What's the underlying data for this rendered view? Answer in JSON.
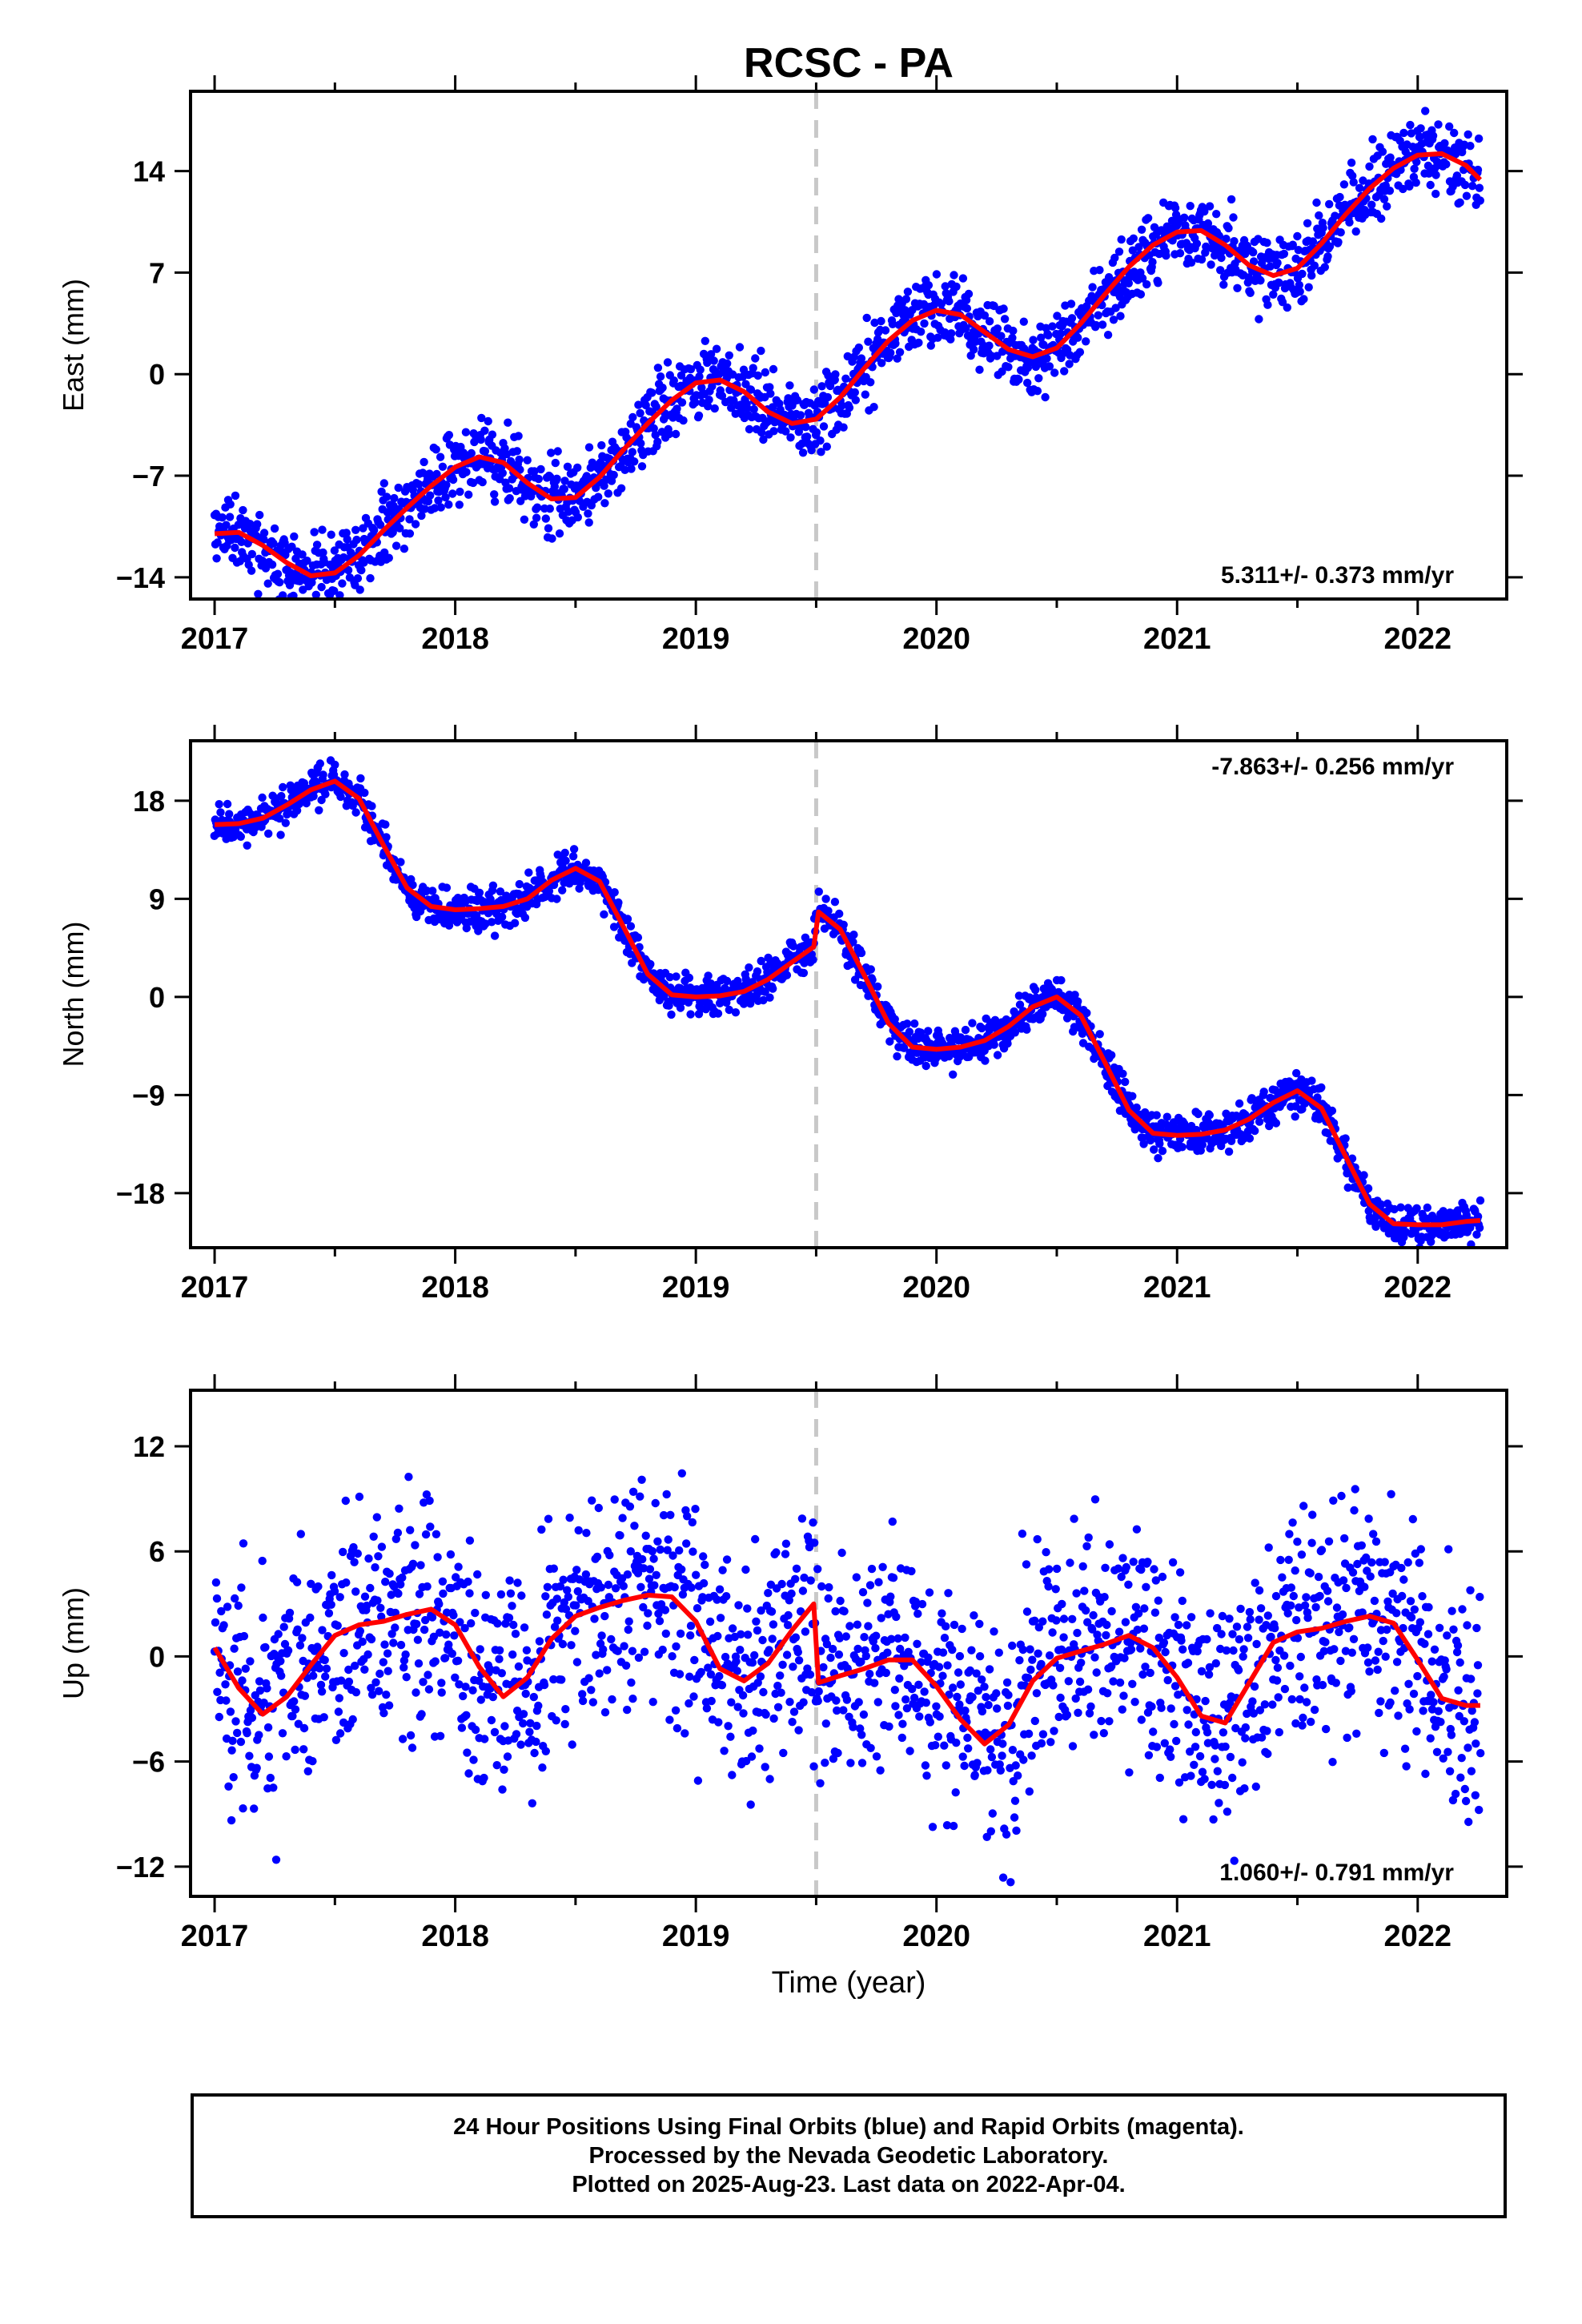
{
  "title": "RCSC - PA",
  "xlabel": "Time (year)",
  "colors": {
    "final_orbits": "#0000ff",
    "model": "#ff0000",
    "event_line": "#c8c8c8",
    "frame": "#000000"
  },
  "footer": {
    "line1": "24 Hour Positions Using Final Orbits (blue) and Rapid Orbits (magenta).",
    "line2": "Processed by the Nevada Geodetic Laboratory.",
    "line3": "Plotted on 2025-Aug-23. Last data on 2022-Apr-04."
  },
  "chart_data": [
    {
      "type": "scatter",
      "name": "east",
      "ylabel": "East (mm)",
      "rate_label": "5.311+/- 0.373 mm/yr",
      "rate_position": "bottom-right",
      "xlim": [
        2016.9,
        2022.37
      ],
      "ylim": [
        -15.5,
        19.5
      ],
      "yticks": [
        -14,
        -7,
        0,
        7,
        14
      ],
      "xticks": [
        2017,
        2018,
        2019,
        2020,
        2021,
        2022
      ],
      "event_line_x": 2019.5,
      "model_x": [
        2017.0,
        2017.1,
        2017.2,
        2017.3,
        2017.4,
        2017.5,
        2017.6,
        2017.7,
        2017.8,
        2017.9,
        2018.0,
        2018.1,
        2018.2,
        2018.3,
        2018.4,
        2018.5,
        2018.6,
        2018.7,
        2018.8,
        2018.9,
        2019.0,
        2019.1,
        2019.2,
        2019.3,
        2019.4,
        2019.5,
        2019.6,
        2019.7,
        2019.8,
        2019.9,
        2020.0,
        2020.1,
        2020.2,
        2020.3,
        2020.4,
        2020.5,
        2020.6,
        2020.7,
        2020.8,
        2020.9,
        2021.0,
        2021.1,
        2021.2,
        2021.3,
        2021.4,
        2021.5,
        2021.6,
        2021.7,
        2021.8,
        2021.9,
        2022.0,
        2022.1,
        2022.2,
        2022.26
      ],
      "model_y": [
        -11.0,
        -10.9,
        -11.8,
        -13.0,
        -13.9,
        -13.7,
        -12.5,
        -10.8,
        -9.2,
        -7.7,
        -6.4,
        -5.7,
        -6.1,
        -7.5,
        -8.6,
        -8.5,
        -7.1,
        -5.2,
        -3.4,
        -1.8,
        -0.6,
        -0.4,
        -1.2,
        -2.6,
        -3.4,
        -3.1,
        -1.6,
        0.4,
        2.3,
        3.7,
        4.4,
        4.1,
        2.9,
        1.7,
        1.2,
        1.8,
        3.5,
        5.5,
        7.4,
        8.9,
        9.8,
        9.9,
        8.9,
        7.5,
        6.8,
        7.3,
        9.0,
        11.0,
        12.8,
        14.2,
        15.1,
        15.2,
        14.4,
        13.4
      ],
      "noise": 1.3,
      "seed": 11
    },
    {
      "type": "scatter",
      "name": "north",
      "ylabel": "North (mm)",
      "rate_label": "-7.863+/- 0.256 mm/yr",
      "rate_position": "top-right",
      "xlim": [
        2016.9,
        2022.37
      ],
      "ylim": [
        -23,
        23.5
      ],
      "yticks": [
        -18,
        -9,
        0,
        9,
        18
      ],
      "xticks": [
        2017,
        2018,
        2019,
        2020,
        2021,
        2022
      ],
      "event_line_x": 2019.5,
      "model_x": [
        2017.0,
        2017.1,
        2017.2,
        2017.3,
        2017.4,
        2017.5,
        2017.6,
        2017.7,
        2017.8,
        2017.9,
        2018.0,
        2018.1,
        2018.2,
        2018.3,
        2018.4,
        2018.5,
        2018.6,
        2018.7,
        2018.8,
        2018.9,
        2019.0,
        2019.1,
        2019.2,
        2019.3,
        2019.4,
        2019.49,
        2019.51,
        2019.6,
        2019.7,
        2019.8,
        2019.9,
        2020.0,
        2020.1,
        2020.2,
        2020.3,
        2020.4,
        2020.5,
        2020.6,
        2020.7,
        2020.8,
        2020.9,
        2021.0,
        2021.1,
        2021.2,
        2021.3,
        2021.4,
        2021.5,
        2021.6,
        2021.7,
        2021.8,
        2021.9,
        2022.0,
        2022.1,
        2022.2,
        2022.26
      ],
      "model_y": [
        15.8,
        15.9,
        16.4,
        17.6,
        19.0,
        19.8,
        18.2,
        14.0,
        10.0,
        8.3,
        8.0,
        8.1,
        8.3,
        9.0,
        10.7,
        11.8,
        10.6,
        6.4,
        2.1,
        0.2,
        0.0,
        0.1,
        0.5,
        1.6,
        3.2,
        4.6,
        7.8,
        6.2,
        2.0,
        -2.4,
        -4.6,
        -4.8,
        -4.6,
        -4.0,
        -2.7,
        -0.9,
        0.0,
        -1.7,
        -6.0,
        -10.4,
        -12.5,
        -12.7,
        -12.6,
        -12.2,
        -11.2,
        -9.7,
        -8.6,
        -10.2,
        -14.6,
        -19.0,
        -20.8,
        -20.9,
        -20.9,
        -20.6,
        -20.5
      ],
      "noise": 0.9,
      "seed": 23
    },
    {
      "type": "scatter",
      "name": "up",
      "ylabel": "Up (mm)",
      "rate_label": "1.060+/- 0.791 mm/yr",
      "rate_position": "bottom-right",
      "xlim": [
        2016.9,
        2022.37
      ],
      "ylim": [
        -13.7,
        15.2
      ],
      "yticks": [
        -12,
        -6,
        0,
        6,
        12
      ],
      "xticks": [
        2017,
        2018,
        2019,
        2020,
        2021,
        2022
      ],
      "event_line_x": 2019.5,
      "model_x": [
        2017.0,
        2017.1,
        2017.2,
        2017.3,
        2017.4,
        2017.5,
        2017.6,
        2017.7,
        2017.8,
        2017.9,
        2018.0,
        2018.1,
        2018.2,
        2018.3,
        2018.4,
        2018.5,
        2018.6,
        2018.7,
        2018.8,
        2018.9,
        2019.0,
        2019.1,
        2019.2,
        2019.3,
        2019.4,
        2019.49,
        2019.51,
        2019.6,
        2019.7,
        2019.8,
        2019.9,
        2020.0,
        2020.1,
        2020.2,
        2020.3,
        2020.4,
        2020.5,
        2020.6,
        2020.7,
        2020.8,
        2020.9,
        2021.0,
        2021.1,
        2021.2,
        2021.3,
        2021.4,
        2021.5,
        2021.6,
        2021.7,
        2021.8,
        2021.9,
        2022.0,
        2022.1,
        2022.2,
        2022.26
      ],
      "model_y": [
        0.5,
        -1.8,
        -3.3,
        -2.3,
        -0.5,
        1.2,
        1.8,
        2.0,
        2.4,
        2.7,
        1.8,
        -0.6,
        -2.3,
        -1.2,
        1.0,
        2.3,
        2.8,
        3.2,
        3.5,
        3.4,
        2.0,
        -0.7,
        -1.4,
        -0.4,
        1.5,
        3.0,
        -1.5,
        -1.1,
        -0.7,
        -0.2,
        -0.2,
        -1.7,
        -3.6,
        -5.0,
        -3.9,
        -1.4,
        -0.1,
        0.3,
        0.7,
        1.2,
        0.5,
        -1.2,
        -3.4,
        -3.8,
        -1.5,
        0.8,
        1.4,
        1.6,
        2.0,
        2.3,
        1.9,
        -0.2,
        -2.4,
        -2.8,
        -2.8
      ],
      "noise": 3.3,
      "seed": 37
    }
  ]
}
